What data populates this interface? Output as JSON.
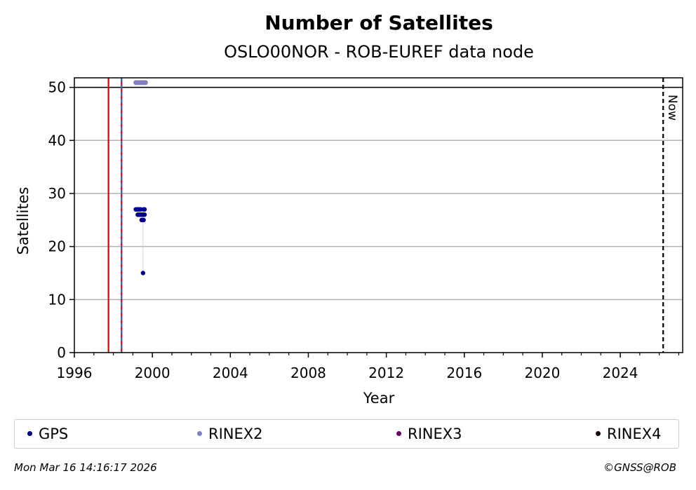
{
  "chart_data": {
    "type": "scatter",
    "title": "Number of Satellites",
    "subtitle": "OSLO00NOR - ROB-EUREF data node",
    "xlabel": "Year",
    "ylabel": "Satellites",
    "xlim": [
      1996,
      2027.2
    ],
    "ylim": [
      0,
      51.8
    ],
    "xticks": [
      1996,
      2000,
      2004,
      2008,
      2012,
      2016,
      2020,
      2024
    ],
    "yticks": [
      0,
      10,
      20,
      30,
      40,
      50
    ],
    "grid": "horizontal",
    "reference_lines": [
      {
        "type": "horizontal",
        "y": 50,
        "color": "#000000",
        "style": "solid"
      },
      {
        "type": "vertical",
        "x": 1997.75,
        "color": "#dd0000",
        "style": "solid"
      },
      {
        "type": "vertical",
        "x": 1998.42,
        "color": "#dd0000",
        "style": "solid"
      },
      {
        "type": "vertical",
        "x": 1998.42,
        "color": "#3366cc",
        "style": "dashed"
      },
      {
        "type": "vertical",
        "x": 2026.2,
        "color": "#000000",
        "style": "dashed",
        "label": "Now"
      }
    ],
    "series": [
      {
        "name": "GPS",
        "color": "#00008b",
        "points": [
          {
            "x": 1999.15,
            "y": 27
          },
          {
            "x": 1999.2,
            "y": 27
          },
          {
            "x": 1999.25,
            "y": 27
          },
          {
            "x": 1999.3,
            "y": 27
          },
          {
            "x": 1999.35,
            "y": 27
          },
          {
            "x": 1999.4,
            "y": 27
          },
          {
            "x": 1999.55,
            "y": 27
          },
          {
            "x": 1999.6,
            "y": 27
          },
          {
            "x": 1999.25,
            "y": 26
          },
          {
            "x": 1999.3,
            "y": 26
          },
          {
            "x": 1999.35,
            "y": 26
          },
          {
            "x": 1999.4,
            "y": 26
          },
          {
            "x": 1999.45,
            "y": 26
          },
          {
            "x": 1999.5,
            "y": 26
          },
          {
            "x": 1999.55,
            "y": 26
          },
          {
            "x": 1999.6,
            "y": 26
          },
          {
            "x": 1999.45,
            "y": 25
          },
          {
            "x": 1999.5,
            "y": 25
          },
          {
            "x": 1999.55,
            "y": 25
          },
          {
            "x": 1999.52,
            "y": 15
          }
        ]
      },
      {
        "name": "RINEX2",
        "color": "#8080c0",
        "points": [
          {
            "x": 1999.15,
            "y": 50.9
          },
          {
            "x": 1999.2,
            "y": 50.9
          },
          {
            "x": 1999.25,
            "y": 50.9
          },
          {
            "x": 1999.3,
            "y": 50.9
          },
          {
            "x": 1999.35,
            "y": 50.9
          },
          {
            "x": 1999.4,
            "y": 50.9
          },
          {
            "x": 1999.45,
            "y": 50.9
          },
          {
            "x": 1999.5,
            "y": 50.9
          },
          {
            "x": 1999.55,
            "y": 50.9
          },
          {
            "x": 1999.6,
            "y": 50.9
          },
          {
            "x": 1999.65,
            "y": 50.9
          }
        ]
      },
      {
        "name": "RINEX3",
        "color": "#6b006b",
        "points": []
      },
      {
        "name": "RINEX4",
        "color": "#1a0010",
        "points": []
      }
    ]
  },
  "footer": {
    "timestamp": "Mon Mar 16 14:16:17 2026",
    "credit": "©GNSS@ROB"
  }
}
